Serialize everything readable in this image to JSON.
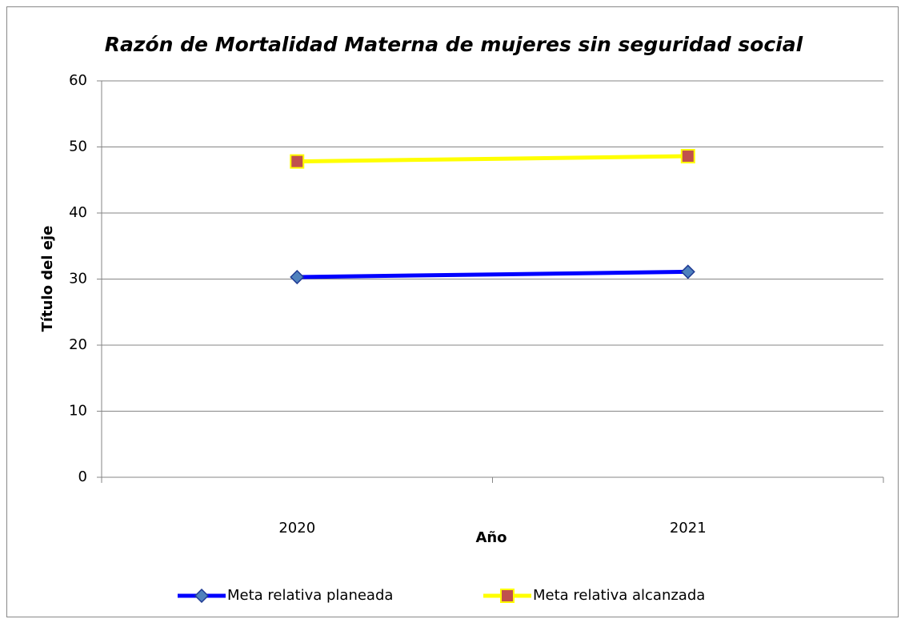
{
  "chart_data": {
    "type": "line",
    "title": "Razón de Mortalidad Materna de mujeres sin seguridad social",
    "x_label": "Año",
    "y_label": "Título del eje",
    "categories": [
      "2020",
      "2021"
    ],
    "series": [
      {
        "name": "Meta relativa planeada",
        "color": "#0000ff",
        "marker_color": "#4f81bd",
        "marker": "diamond",
        "values": [
          30.3,
          31.1
        ]
      },
      {
        "name": "Meta relativa alcanzada",
        "color": "#ffff00",
        "marker_color": "#c0504d",
        "marker": "square",
        "values": [
          47.8,
          48.6
        ]
      }
    ],
    "ylim": [
      0,
      60
    ],
    "yticks": [
      0,
      10,
      20,
      30,
      40,
      50,
      60
    ],
    "grid": true,
    "legend": "bottom"
  }
}
